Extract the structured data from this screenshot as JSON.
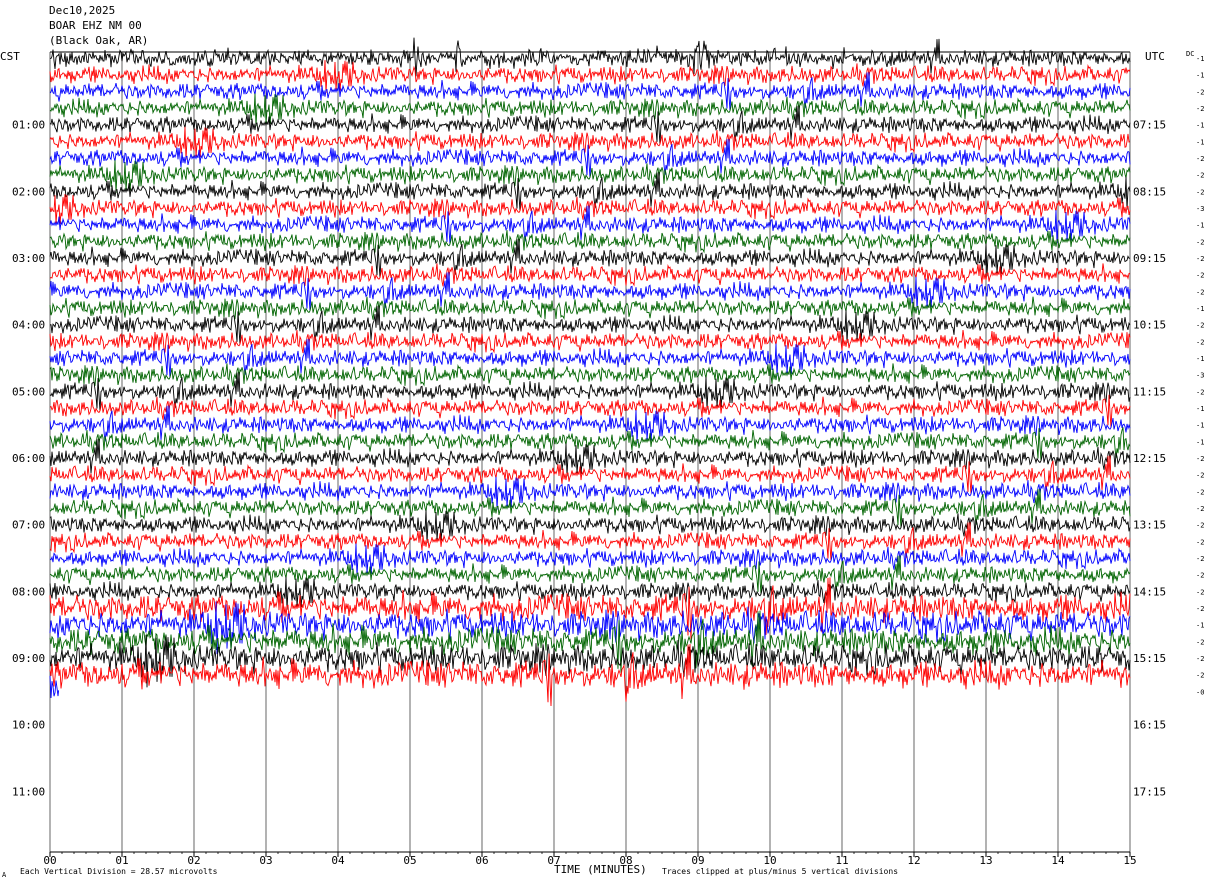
{
  "header": {
    "date": "Dec10,2025",
    "station": "BOAR EHZ NM 00",
    "location": "(Black Oak, AR)"
  },
  "left_zone_label": "CST",
  "right_zone_label": "UTC",
  "dc_label": "DC",
  "footer": {
    "scale_note": "Each Vertical Division =   28.57 microvolts",
    "x_axis_title": "TIME (MINUTES)",
    "clip_note": "Traces clipped at plus/minus 5 vertical divisions",
    "corner_mark": "A"
  },
  "colors": {
    "trace_cycle": [
      "#000000",
      "#ff0000",
      "#0000ff",
      "#006400"
    ],
    "grid": "#000000",
    "background": "#ffffff"
  },
  "chart_data": {
    "type": "line",
    "title": "",
    "xlabel": "TIME (MINUTES)",
    "ylabel": "",
    "xlim": [
      0,
      15
    ],
    "x_ticks": [
      "00",
      "01",
      "02",
      "03",
      "04",
      "05",
      "06",
      "07",
      "08",
      "09",
      "10",
      "11",
      "12",
      "13",
      "14",
      "15"
    ],
    "row_minutes": 15,
    "rows_total": 48,
    "rows_with_data": 39,
    "last_row_minutes_recorded": 0.12,
    "left_hour_labels": [
      "01:00",
      "02:00",
      "03:00",
      "04:00",
      "05:00",
      "06:00",
      "07:00",
      "08:00",
      "09:00",
      "10:00",
      "11:00"
    ],
    "right_hour_labels": [
      "07:15",
      "08:15",
      "09:15",
      "10:15",
      "11:15",
      "12:15",
      "13:15",
      "14:15",
      "15:15",
      "16:15",
      "17:15"
    ],
    "dc_offsets": [
      "-1",
      "-1",
      "-2",
      "-2",
      "-1",
      "-1",
      "-2",
      "-2",
      "-2",
      "-3",
      "-1",
      "-2",
      "-2",
      "-2",
      "-2",
      "-1",
      "-2",
      "-2",
      "-1",
      "-3",
      "-2",
      "-1",
      "-1",
      "-1",
      "-2",
      "-2",
      "-2",
      "-2",
      "-2",
      "-2",
      "-2",
      "-2",
      "-2",
      "-2",
      "-1",
      "-2",
      "-2",
      "-2",
      "-0"
    ],
    "noise_amplitude_divisions": 0.35,
    "activity_increase_from_row": 33,
    "clip_divisions": 5,
    "scale_microvolts_per_division": 28.57
  }
}
